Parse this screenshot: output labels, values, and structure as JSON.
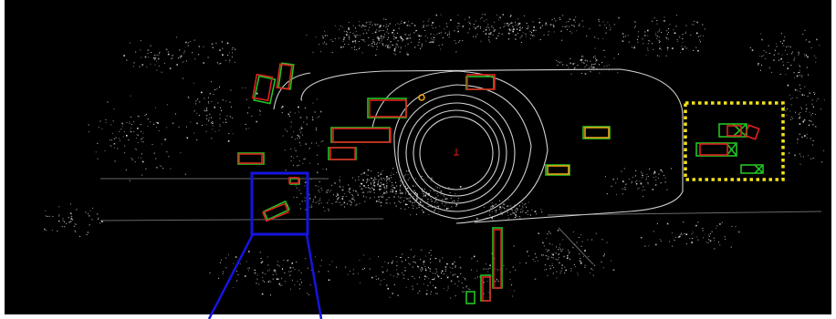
{
  "view": {
    "kind": "lidar bird's-eye-view point cloud with 3D detection boxes",
    "background_color": "#000000",
    "border_color": "#ffffff",
    "point_color": "#e8e8e8",
    "range_ring_color": "#d0d0d0",
    "ground_truth_color": "#22c322",
    "prediction_color": "#e02020",
    "ego_marker_color": "#e02020"
  },
  "highlights": [
    {
      "id": "zoom-region",
      "style": "solid",
      "color": "#1515e0"
    },
    {
      "id": "far-cluster-region",
      "style": "dotted",
      "color": "#f2e21a"
    }
  ]
}
